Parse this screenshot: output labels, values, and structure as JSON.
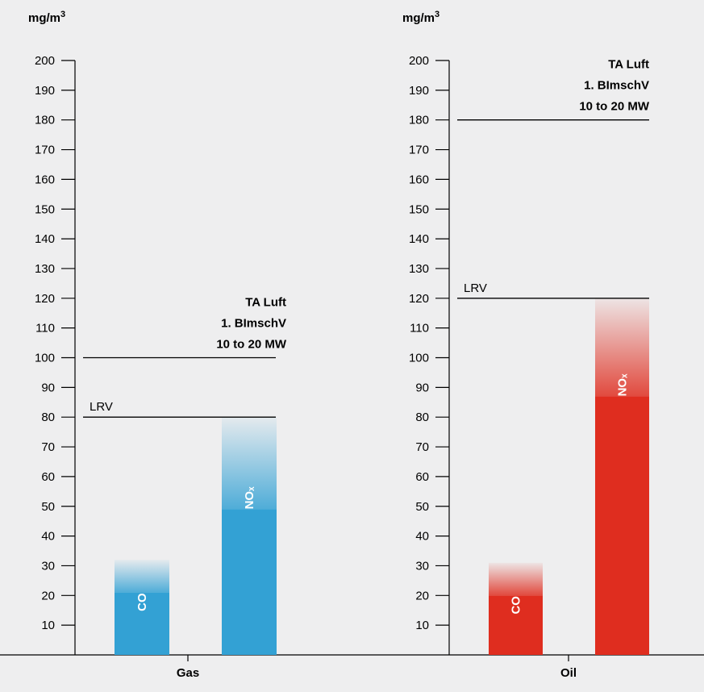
{
  "colors": {
    "background": "#eeeeef",
    "gas": "#33a1d4",
    "oil": "#df2d1f",
    "line": "#000000"
  },
  "chart_data": [
    {
      "type": "bar",
      "unit": "mg/m³",
      "category": "Gas",
      "ylim": [
        0,
        200
      ],
      "yticks": [
        10,
        20,
        30,
        40,
        50,
        60,
        70,
        80,
        90,
        100,
        110,
        120,
        130,
        140,
        150,
        160,
        170,
        180,
        190,
        200
      ],
      "color": "#33a1d4",
      "bars": [
        {
          "label": "CO",
          "value": 21,
          "range_max": 32
        },
        {
          "label": "NOₓ",
          "value": 49,
          "range_max": 80
        }
      ],
      "reference_lines": [
        {
          "label": "LRV",
          "value": 80
        },
        {
          "label_lines": [
            "TA Luft",
            "1. BImschV",
            "10 to 20 MW"
          ],
          "value": 100
        }
      ]
    },
    {
      "type": "bar",
      "unit": "mg/m³",
      "category": "Oil",
      "ylim": [
        0,
        200
      ],
      "yticks": [
        10,
        20,
        30,
        40,
        50,
        60,
        70,
        80,
        90,
        100,
        110,
        120,
        130,
        140,
        150,
        160,
        170,
        180,
        190,
        200
      ],
      "color": "#df2d1f",
      "bars": [
        {
          "label": "CO",
          "value": 20,
          "range_max": 31
        },
        {
          "label": "NOₓ",
          "value": 87,
          "range_max": 120
        }
      ],
      "reference_lines": [
        {
          "label": "LRV",
          "value": 120
        },
        {
          "label_lines": [
            "TA Luft",
            "1. BImschV",
            "10 to 20 MW"
          ],
          "value": 180
        }
      ]
    }
  ]
}
